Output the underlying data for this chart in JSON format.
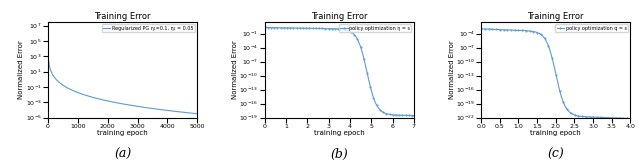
{
  "panel_a": {
    "title": "Training Error",
    "xlabel": "training epoch",
    "ylabel": "Normalized Error",
    "legend": "Regularized PG η₁=0.1, η₂ = 0.05",
    "x_max": 5000,
    "x_ticks": [
      0,
      1000,
      2000,
      3000,
      4000,
      5000
    ],
    "color": "#5b9bd5",
    "label": "(a)",
    "start_exp": 6.5,
    "end_exp": -4.5,
    "decay_rate": 0.0012,
    "ylim_min_exp": -5,
    "ylim_max_exp": 7.5
  },
  "panel_b": {
    "title": "Training Error",
    "xlabel": "training epoch",
    "ylabel": "Normalized Error",
    "legend": "policy optimization η = s",
    "x_max": 7,
    "x_ticks": [
      0,
      1,
      2,
      3,
      4,
      5,
      6,
      7
    ],
    "color": "#5b9bd5",
    "label": "(b)",
    "start_exp": 0.3,
    "end_exp": -18,
    "x_mid": 4.8,
    "steepness": 4.5,
    "initial_slope": -0.08,
    "ylim_min_exp": -19,
    "ylim_max_exp": 1.5
  },
  "panel_c": {
    "title": "Training Error",
    "xlabel": "training epoch",
    "ylabel": "Normalized Error",
    "legend": "policy optimization q = s",
    "x_max": 4.0,
    "x_ticks": [
      0.0,
      0.5,
      1.0,
      1.5,
      2.0,
      2.5,
      3.0,
      3.5,
      4.0
    ],
    "color": "#5b9bd5",
    "label": "(c)",
    "start_exp": -3,
    "end_exp": -21,
    "x_mid": 2.0,
    "steepness": 8.0,
    "initial_slope": -0.3,
    "ylim_min_exp": -22,
    "ylim_max_exp": -1.5
  }
}
